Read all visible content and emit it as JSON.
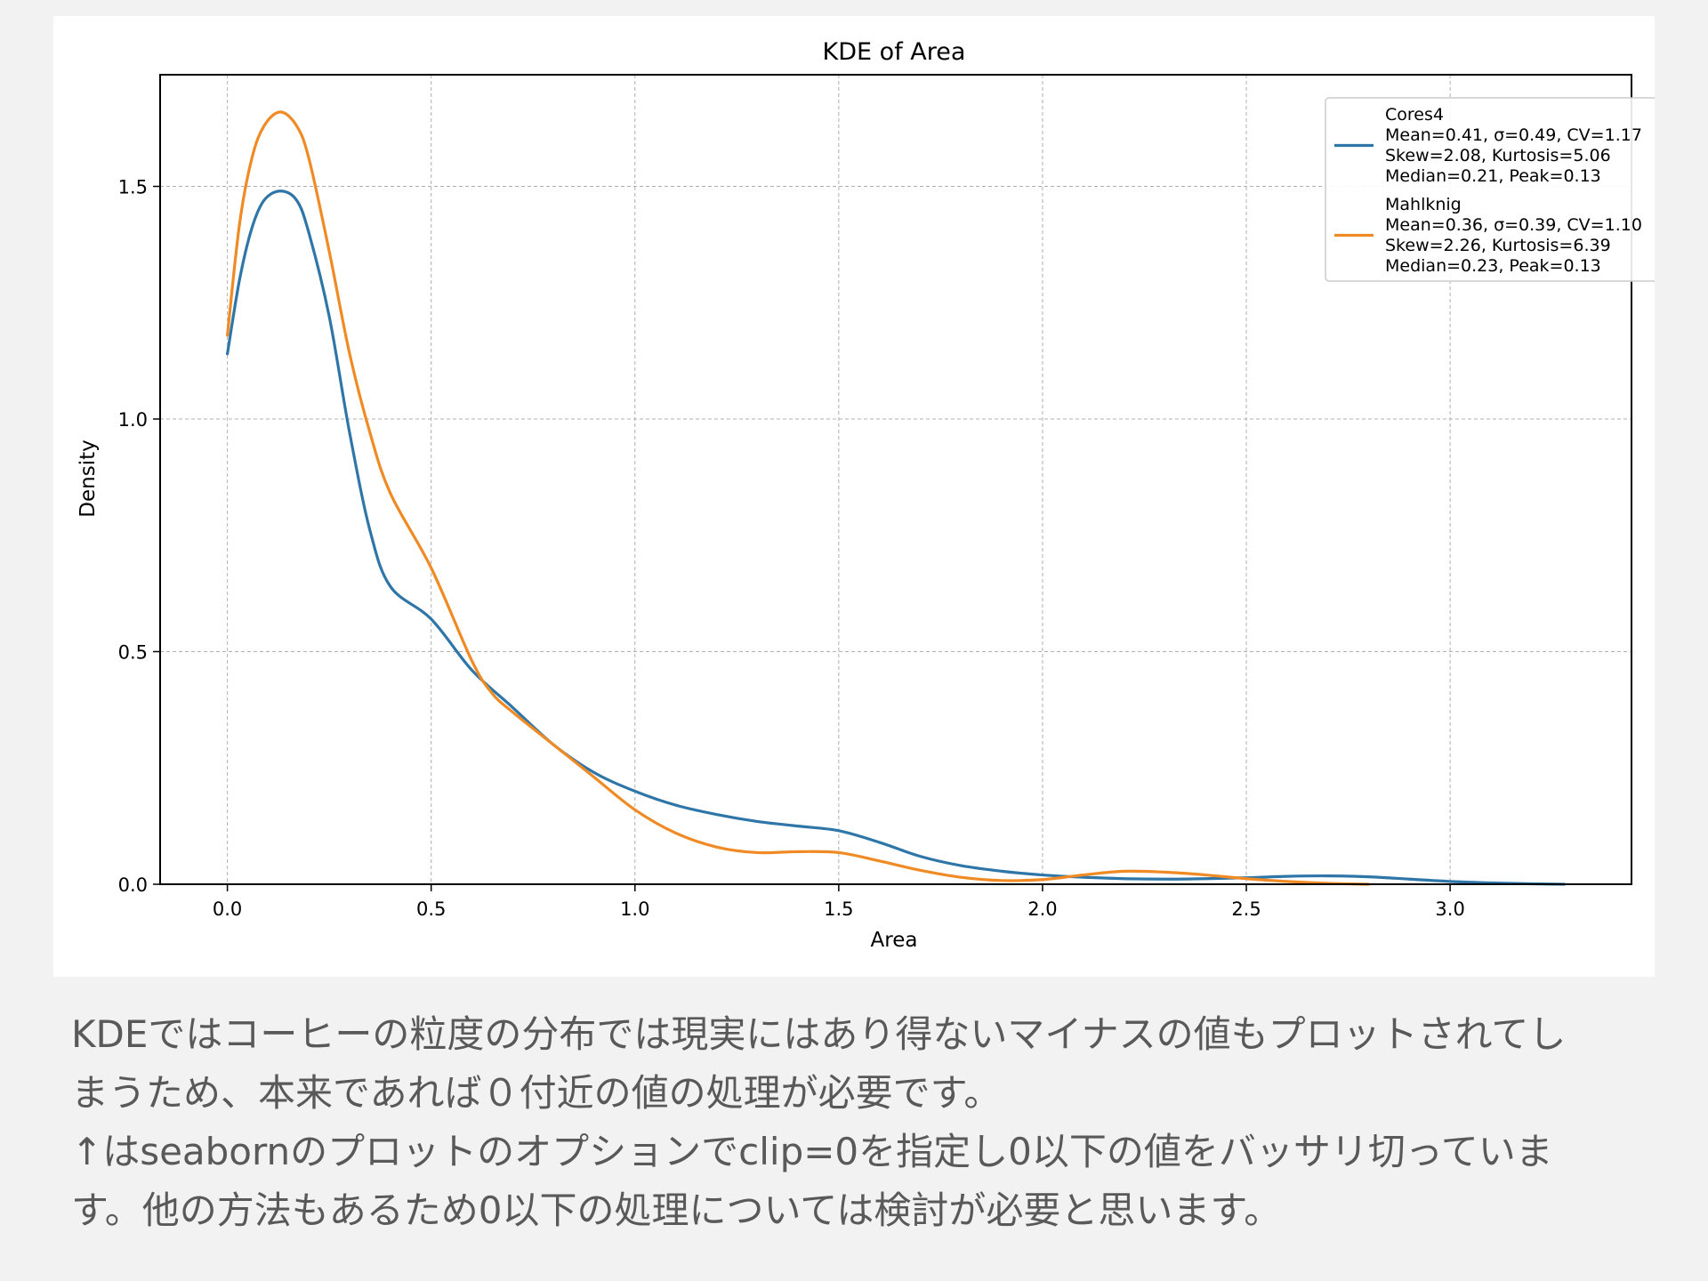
{
  "chart_data": {
    "type": "line",
    "title": "KDE of Area",
    "xlabel": "Area",
    "ylabel": "Density",
    "xlim": [
      -0.165,
      3.445
    ],
    "ylim": [
      0,
      1.74
    ],
    "xticks": [
      0.0,
      0.5,
      1.0,
      1.5,
      2.0,
      2.5,
      3.0
    ],
    "xtick_labels": [
      "0.0",
      "0.5",
      "1.0",
      "1.5",
      "2.0",
      "2.5",
      "3.0"
    ],
    "yticks": [
      0.0,
      0.5,
      1.0,
      1.5
    ],
    "ytick_labels": [
      "0.0",
      "0.5",
      "1.0",
      "1.5"
    ],
    "grid": true,
    "legend_placement": "top-right",
    "series": [
      {
        "name": "Cores4",
        "color": "#2f76a8",
        "stats_lines": [
          "Mean=0.41, σ=0.49, CV=1.17",
          "Skew=2.08, Kurtosis=5.06",
          "Median=0.21, Peak=0.13"
        ],
        "points": [
          [
            0.0,
            1.14
          ],
          [
            0.03,
            1.3
          ],
          [
            0.06,
            1.41
          ],
          [
            0.09,
            1.47
          ],
          [
            0.13,
            1.49
          ],
          [
            0.17,
            1.47
          ],
          [
            0.2,
            1.4
          ],
          [
            0.25,
            1.22
          ],
          [
            0.3,
            0.97
          ],
          [
            0.35,
            0.76
          ],
          [
            0.4,
            0.64
          ],
          [
            0.5,
            0.57
          ],
          [
            0.6,
            0.46
          ],
          [
            0.7,
            0.38
          ],
          [
            0.8,
            0.3
          ],
          [
            0.9,
            0.24
          ],
          [
            1.0,
            0.2
          ],
          [
            1.1,
            0.17
          ],
          [
            1.2,
            0.15
          ],
          [
            1.3,
            0.135
          ],
          [
            1.4,
            0.125
          ],
          [
            1.5,
            0.115
          ],
          [
            1.6,
            0.09
          ],
          [
            1.7,
            0.06
          ],
          [
            1.8,
            0.04
          ],
          [
            1.9,
            0.028
          ],
          [
            2.0,
            0.02
          ],
          [
            2.1,
            0.015
          ],
          [
            2.2,
            0.012
          ],
          [
            2.3,
            0.011
          ],
          [
            2.4,
            0.012
          ],
          [
            2.5,
            0.014
          ],
          [
            2.6,
            0.017
          ],
          [
            2.7,
            0.018
          ],
          [
            2.8,
            0.016
          ],
          [
            2.9,
            0.011
          ],
          [
            3.0,
            0.006
          ],
          [
            3.1,
            0.003
          ],
          [
            3.2,
            0.001
          ],
          [
            3.28,
            0.0
          ]
        ]
      },
      {
        "name": "Mahlknig",
        "color": "#f08a24",
        "stats_lines": [
          "Mean=0.36, σ=0.39, CV=1.10",
          "Skew=2.26, Kurtosis=6.39",
          "Median=0.23, Peak=0.13"
        ],
        "points": [
          [
            0.0,
            1.18
          ],
          [
            0.03,
            1.42
          ],
          [
            0.06,
            1.56
          ],
          [
            0.09,
            1.63
          ],
          [
            0.13,
            1.66
          ],
          [
            0.17,
            1.63
          ],
          [
            0.2,
            1.56
          ],
          [
            0.25,
            1.36
          ],
          [
            0.3,
            1.14
          ],
          [
            0.35,
            0.97
          ],
          [
            0.4,
            0.84
          ],
          [
            0.5,
            0.68
          ],
          [
            0.6,
            0.48
          ],
          [
            0.65,
            0.41
          ],
          [
            0.7,
            0.37
          ],
          [
            0.8,
            0.3
          ],
          [
            0.9,
            0.23
          ],
          [
            1.0,
            0.16
          ],
          [
            1.1,
            0.11
          ],
          [
            1.2,
            0.08
          ],
          [
            1.3,
            0.068
          ],
          [
            1.4,
            0.07
          ],
          [
            1.5,
            0.068
          ],
          [
            1.6,
            0.05
          ],
          [
            1.7,
            0.03
          ],
          [
            1.8,
            0.015
          ],
          [
            1.9,
            0.008
          ],
          [
            2.0,
            0.01
          ],
          [
            2.1,
            0.02
          ],
          [
            2.2,
            0.028
          ],
          [
            2.3,
            0.026
          ],
          [
            2.4,
            0.02
          ],
          [
            2.5,
            0.012
          ],
          [
            2.6,
            0.006
          ],
          [
            2.7,
            0.002
          ],
          [
            2.8,
            0.0
          ]
        ]
      }
    ]
  },
  "caption": {
    "lines": [
      "KDEではコーヒーの粒度の分布では現実にはあり得ないマイナスの値もプロットされてし",
      "まうため、本来であれば０付近の値の処理が必要です。",
      "↑はseabornのプロットのオプションでclip=0を指定し0以下の値をバッサリ切っていま",
      "す。他の方法もあるため0以下の処理については検討が必要と思います。"
    ]
  }
}
